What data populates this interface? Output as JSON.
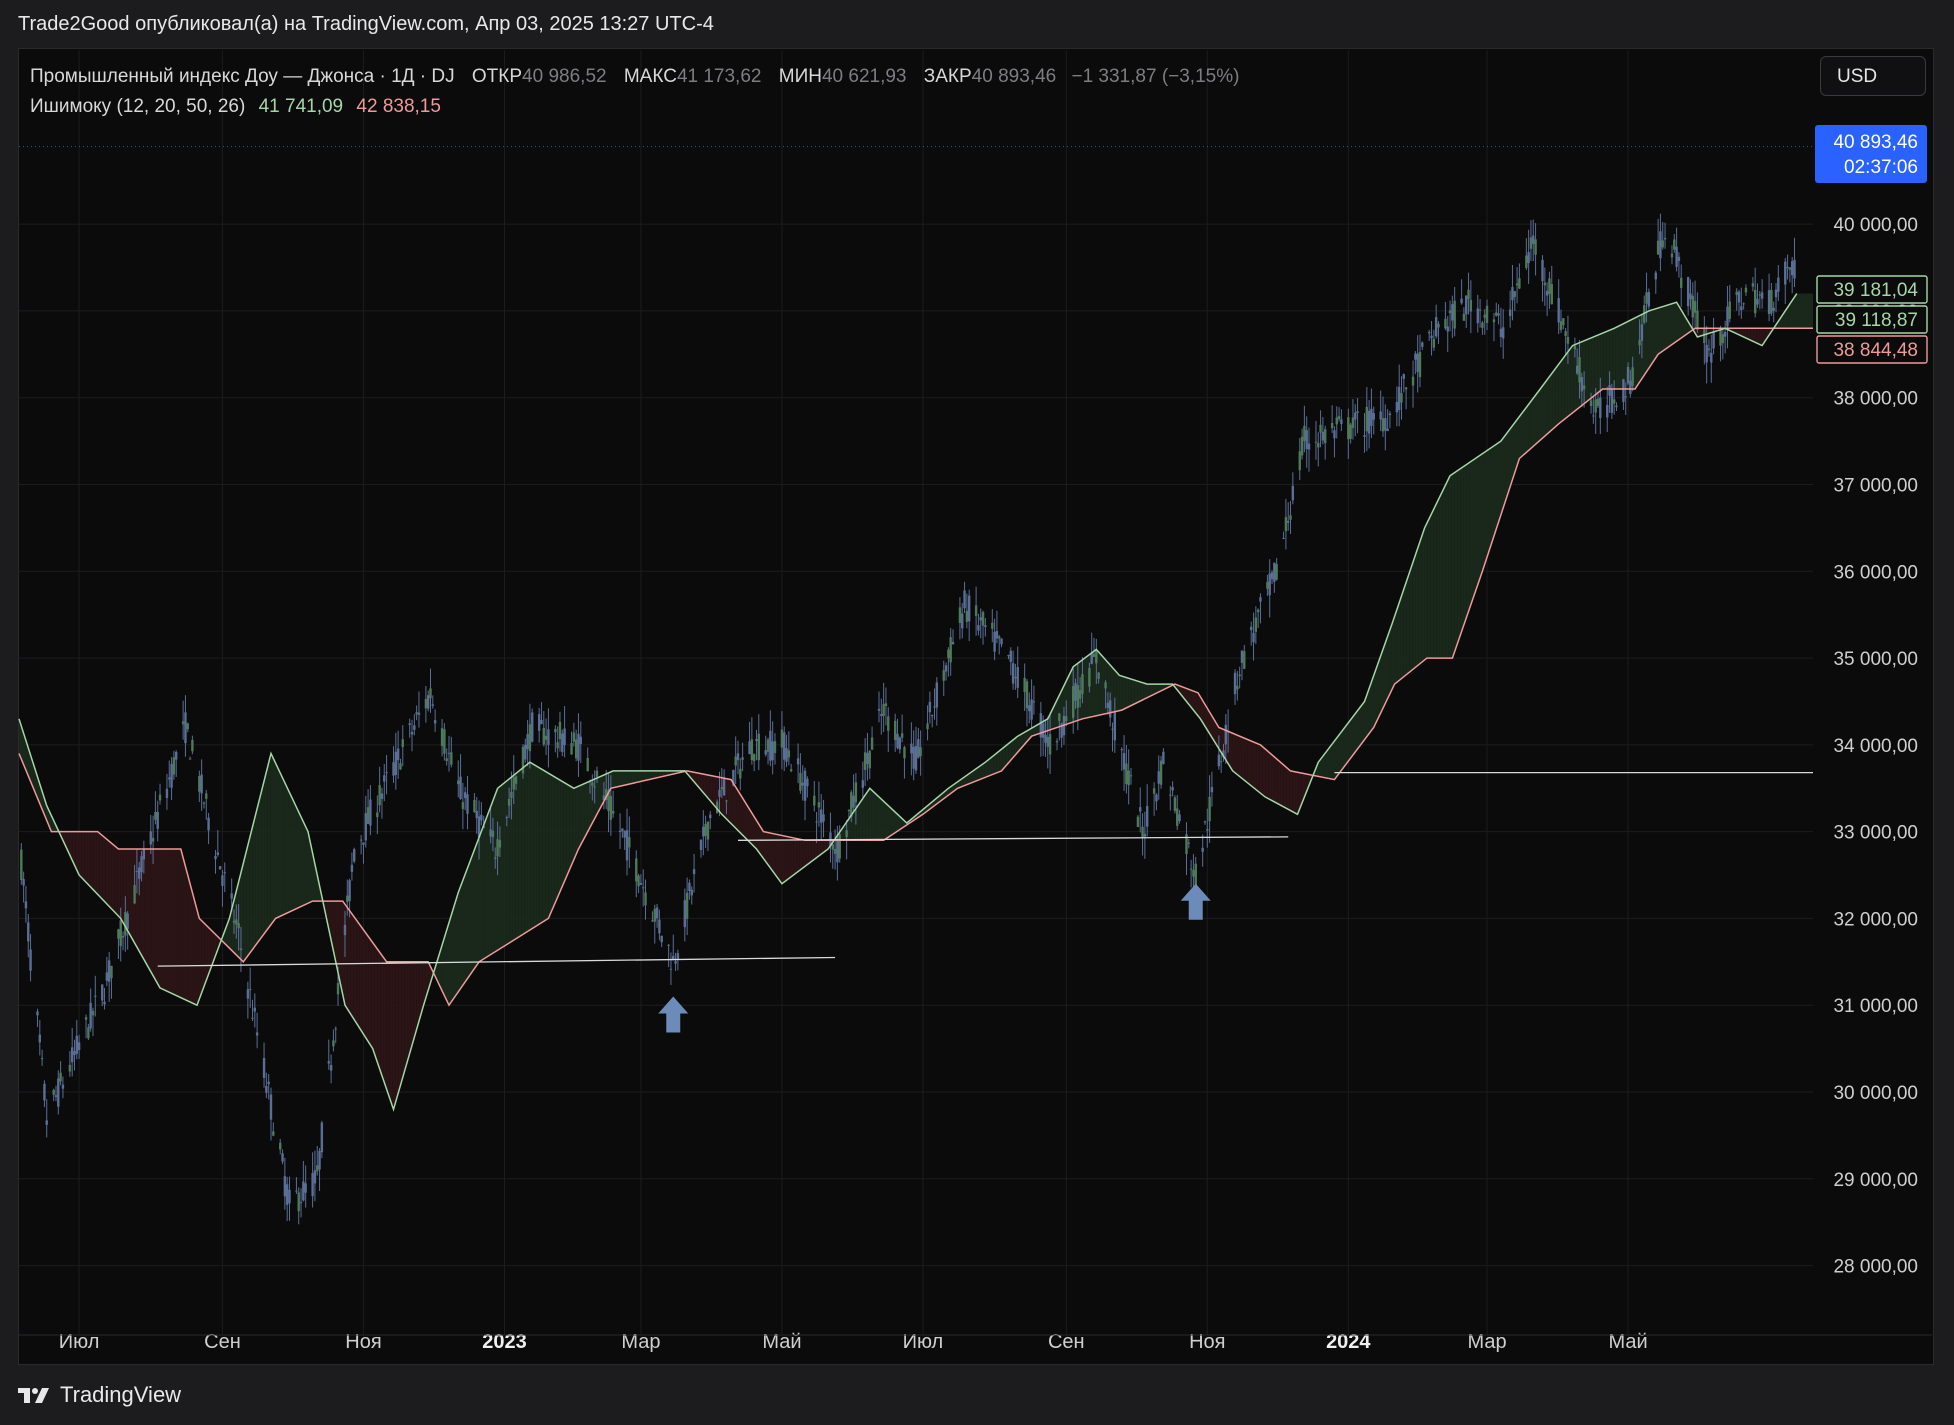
{
  "header": {
    "published": "Trade2Good опубликовал(а) на TradingView.com, Апр 03, 2025 13:27 UTC-4"
  },
  "legend": {
    "symbol": "Промышленный индекс Доу — Джонса · 1Д · DJ",
    "open_label": "ОТКР",
    "open": "40 986,52",
    "high_label": "МАКС",
    "high": "41 173,62",
    "low_label": "МИН",
    "low": "40 621,93",
    "close_label": "ЗАКР",
    "close": "40 893,46",
    "change": "−1 331,87 (−3,15%)",
    "indicator": "Ишимоку (12, 20, 50, 26)",
    "ind_a": "41 741,09",
    "ind_b": "42 838,15"
  },
  "currency_button": "USD",
  "price_tag": {
    "value": "40 893,46",
    "countdown": "02:37:06",
    "color": "#2962ff"
  },
  "side_tags": [
    {
      "value": "39 181,04",
      "color": "#a5d6a7"
    },
    {
      "value": "39 118,87",
      "color": "#a5d6a7"
    },
    {
      "value": "38 844,48",
      "color": "#ef9a9a"
    }
  ],
  "brand": "TradingView",
  "colors": {
    "span_a": "#a5d6a7",
    "span_b": "#ef9a9a",
    "candle": "#5b6f96",
    "bull_cloud": "#1b2a1d",
    "bear_cloud": "#2c1516"
  },
  "chart_data": {
    "type": "candlestick",
    "y_axis": {
      "range": [
        27200,
        41200
      ],
      "ticks": [
        28000,
        29000,
        30000,
        31000,
        32000,
        33000,
        34000,
        35000,
        36000,
        37000,
        38000,
        39000,
        40000
      ],
      "tick_labels": [
        "28 000,00",
        "29 000,00",
        "30 000,00",
        "31 000,00",
        "32 000,00",
        "33 000,00",
        "34 000,00",
        "35 000,00",
        "36 000,00",
        "37 000,00",
        "38 000,00",
        "39 000,00",
        "40 000,00"
      ]
    },
    "x_axis": {
      "range": [
        "2022-06-05",
        "2024-07-20"
      ],
      "ticks": [
        "2022-07-01",
        "2022-09-01",
        "2022-11-01",
        "2023-01-01",
        "2023-03-01",
        "2023-05-01",
        "2023-07-01",
        "2023-09-01",
        "2023-11-01",
        "2024-01-01",
        "2024-03-01",
        "2024-05-01"
      ],
      "tick_labels": [
        "Июл",
        "Сен",
        "Ноя",
        "2023",
        "Мар",
        "Май",
        "Июл",
        "Сен",
        "Ноя",
        "2024",
        "Мар",
        "Май"
      ]
    },
    "price_path": [
      [
        "2022-06-05",
        32900
      ],
      [
        "2022-06-17",
        29700
      ],
      [
        "2022-07-12",
        31200
      ],
      [
        "2022-08-16",
        34200
      ],
      [
        "2022-09-08",
        31800
      ],
      [
        "2022-09-30",
        28700
      ],
      [
        "2022-10-12",
        29000
      ],
      [
        "2022-10-28",
        32800
      ],
      [
        "2022-11-30",
        34600
      ],
      [
        "2022-12-12",
        33500
      ],
      [
        "2022-12-28",
        32800
      ],
      [
        "2023-01-13",
        34200
      ],
      [
        "2023-02-02",
        34000
      ],
      [
        "2023-02-24",
        32800
      ],
      [
        "2023-03-15",
        31500
      ],
      [
        "2023-03-31",
        33200
      ],
      [
        "2023-04-18",
        34000
      ],
      [
        "2023-05-02",
        34000
      ],
      [
        "2023-05-25",
        32800
      ],
      [
        "2023-06-14",
        34400
      ],
      [
        "2023-06-28",
        33800
      ],
      [
        "2023-07-19",
        35600
      ],
      [
        "2023-08-07",
        35000
      ],
      [
        "2023-08-25",
        34000
      ],
      [
        "2023-09-14",
        35000
      ],
      [
        "2023-10-04",
        33000
      ],
      [
        "2023-10-13",
        33800
      ],
      [
        "2023-10-27",
        32500
      ],
      [
        "2023-11-15",
        34900
      ],
      [
        "2023-12-01",
        36000
      ],
      [
        "2023-12-13",
        37500
      ],
      [
        "2024-01-19",
        37800
      ],
      [
        "2024-02-09",
        38800
      ],
      [
        "2024-02-23",
        39100
      ],
      [
        "2024-03-08",
        38800
      ],
      [
        "2024-03-21",
        39800
      ],
      [
        "2024-04-17",
        37800
      ],
      [
        "2024-05-02",
        38200
      ],
      [
        "2024-05-17",
        40000
      ],
      [
        "2024-06-05",
        38500
      ],
      [
        "2024-06-20",
        39200
      ],
      [
        "2024-07-01",
        39100
      ],
      [
        "2024-07-10",
        39500
      ]
    ],
    "span_a": [
      [
        "2022-06-05",
        34300
      ],
      [
        "2022-06-17",
        33300
      ],
      [
        "2022-07-01",
        32500
      ],
      [
        "2022-07-19",
        32000
      ],
      [
        "2022-08-05",
        31200
      ],
      [
        "2022-08-21",
        31000
      ],
      [
        "2022-09-04",
        32000
      ],
      [
        "2022-09-22",
        33900
      ],
      [
        "2022-10-08",
        33000
      ],
      [
        "2022-10-24",
        31000
      ],
      [
        "2022-11-05",
        30500
      ],
      [
        "2022-11-14",
        29800
      ],
      [
        "2022-11-27",
        31000
      ],
      [
        "2022-12-12",
        32300
      ],
      [
        "2022-12-29",
        33500
      ],
      [
        "2023-01-12",
        33800
      ],
      [
        "2023-01-31",
        33500
      ],
      [
        "2023-02-17",
        33700
      ],
      [
        "2023-03-05",
        33700
      ],
      [
        "2023-03-20",
        33700
      ],
      [
        "2023-04-05",
        33200
      ],
      [
        "2023-04-20",
        32800
      ],
      [
        "2023-05-01",
        32400
      ],
      [
        "2023-05-21",
        32800
      ],
      [
        "2023-06-08",
        33500
      ],
      [
        "2023-06-24",
        33100
      ],
      [
        "2023-07-12",
        33500
      ],
      [
        "2023-07-28",
        33800
      ],
      [
        "2023-08-11",
        34100
      ],
      [
        "2023-08-24",
        34300
      ],
      [
        "2023-09-04",
        34900
      ],
      [
        "2023-09-14",
        35100
      ],
      [
        "2023-09-24",
        34800
      ],
      [
        "2023-10-06",
        34700
      ],
      [
        "2023-10-17",
        34700
      ],
      [
        "2023-10-29",
        34300
      ],
      [
        "2023-11-12",
        33700
      ],
      [
        "2023-11-26",
        33400
      ],
      [
        "2023-12-10",
        33200
      ],
      [
        "2023-12-19",
        33800
      ],
      [
        "2024-01-08",
        34500
      ],
      [
        "2024-01-20",
        35400
      ],
      [
        "2024-02-03",
        36500
      ],
      [
        "2024-02-14",
        37100
      ],
      [
        "2024-03-07",
        37500
      ],
      [
        "2024-03-24",
        38100
      ],
      [
        "2024-04-07",
        38600
      ],
      [
        "2024-04-25",
        38800
      ],
      [
        "2024-05-10",
        39000
      ],
      [
        "2024-05-22",
        39100
      ],
      [
        "2024-05-31",
        38700
      ],
      [
        "2024-06-12",
        38800
      ],
      [
        "2024-06-28",
        38600
      ],
      [
        "2024-07-13",
        39200
      ]
    ],
    "span_b": [
      [
        "2022-06-05",
        33900
      ],
      [
        "2022-06-19",
        33000
      ],
      [
        "2022-07-09",
        33000
      ],
      [
        "2022-07-18",
        32800
      ],
      [
        "2022-07-28",
        32800
      ],
      [
        "2022-08-14",
        32800
      ],
      [
        "2022-08-22",
        32000
      ],
      [
        "2022-09-10",
        31500
      ],
      [
        "2022-09-24",
        32000
      ],
      [
        "2022-10-10",
        32200
      ],
      [
        "2022-10-23",
        32200
      ],
      [
        "2022-11-11",
        31500
      ],
      [
        "2022-11-29",
        31500
      ],
      [
        "2022-12-08",
        31000
      ],
      [
        "2022-12-21",
        31500
      ],
      [
        "2023-01-20",
        32000
      ],
      [
        "2023-02-02",
        32800
      ],
      [
        "2023-02-16",
        33500
      ],
      [
        "2023-03-21",
        33700
      ],
      [
        "2023-04-09",
        33600
      ],
      [
        "2023-04-23",
        33000
      ],
      [
        "2023-05-11",
        32900
      ],
      [
        "2023-06-03",
        32900
      ],
      [
        "2023-06-14",
        32900
      ],
      [
        "2023-07-01",
        33200
      ],
      [
        "2023-07-16",
        33500
      ],
      [
        "2023-08-04",
        33700
      ],
      [
        "2023-08-17",
        34100
      ],
      [
        "2023-09-08",
        34300
      ],
      [
        "2023-09-25",
        34400
      ],
      [
        "2023-10-18",
        34700
      ],
      [
        "2023-10-28",
        34600
      ],
      [
        "2023-11-06",
        34200
      ],
      [
        "2023-11-24",
        34000
      ],
      [
        "2023-12-07",
        33700
      ],
      [
        "2023-12-26",
        33600
      ],
      [
        "2024-01-12",
        34200
      ],
      [
        "2024-01-21",
        34700
      ],
      [
        "2024-02-04",
        35000
      ],
      [
        "2024-02-15",
        35000
      ],
      [
        "2024-02-28",
        36000
      ],
      [
        "2024-03-15",
        37300
      ],
      [
        "2024-04-01",
        37700
      ],
      [
        "2024-04-20",
        38100
      ],
      [
        "2024-05-04",
        38100
      ],
      [
        "2024-05-14",
        38500
      ],
      [
        "2024-05-30",
        38800
      ],
      [
        "2024-06-25",
        38800
      ],
      [
        "2024-07-20",
        38800
      ]
    ],
    "support_lines": [
      {
        "from": [
          "2022-08-04",
          31450
        ],
        "to": [
          "2023-05-24",
          31550
        ]
      },
      {
        "from": [
          "2023-04-12",
          32900
        ],
        "to": [
          "2023-12-06",
          32940
        ]
      },
      {
        "from": [
          "2023-12-26",
          33680
        ],
        "to": [
          "2024-07-20",
          33680
        ]
      }
    ],
    "markers": [
      {
        "type": "up-arrow",
        "date": "2023-03-15",
        "value": 31100
      },
      {
        "type": "up-arrow",
        "date": "2023-10-27",
        "value": 32400
      }
    ],
    "last_price": 40893.46,
    "last_price_line": 40893.46
  }
}
